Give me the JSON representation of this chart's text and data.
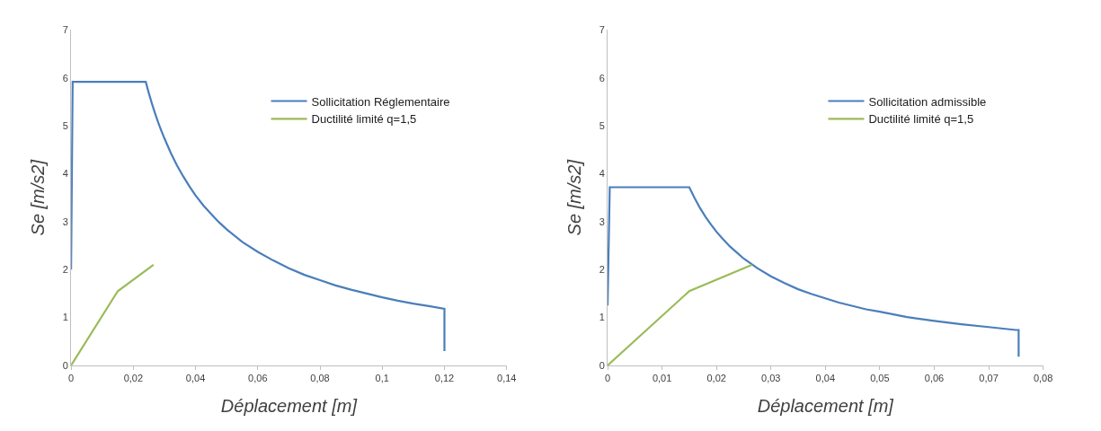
{
  "chart_data": [
    {
      "type": "line",
      "xlabel": "Déplacement [m]",
      "ylabel": "Se [m/s2]",
      "xlim": [
        0,
        0.14
      ],
      "ylim": [
        0,
        7
      ],
      "xticks": [
        0,
        {
          "value": 0.02,
          "label": "0,02"
        },
        {
          "value": 0.04,
          "label": "0,04"
        },
        {
          "value": 0.06,
          "label": "0,06"
        },
        {
          "value": 0.08,
          "label": "0,08"
        },
        {
          "value": 0.1,
          "label": "0,1"
        },
        {
          "value": 0.12,
          "label": "0,12"
        },
        {
          "value": 0.14,
          "label": "0,14"
        }
      ],
      "yticks": [
        0,
        1,
        2,
        3,
        4,
        5,
        6,
        7
      ],
      "legend": "top right",
      "marker": "none",
      "line_style": "solid",
      "series": [
        {
          "name": "Sollicitation Réglementaire",
          "color": "#4a7ebb",
          "x": [
            0,
            0.0005,
            0.024,
            0.025,
            0.026,
            0.027,
            0.028,
            0.029,
            0.03,
            0.032,
            0.034,
            0.036,
            0.038,
            0.04,
            0.0425,
            0.045,
            0.0475,
            0.05,
            0.055,
            0.06,
            0.065,
            0.07,
            0.075,
            0.08,
            0.085,
            0.09,
            0.095,
            0.1,
            0.105,
            0.11,
            0.115,
            0.12,
            0.12
          ],
          "values": [
            2.0,
            5.92,
            5.92,
            5.68,
            5.46,
            5.26,
            5.07,
            4.9,
            4.74,
            4.44,
            4.18,
            3.95,
            3.74,
            3.55,
            3.34,
            3.16,
            2.99,
            2.84,
            2.58,
            2.37,
            2.19,
            2.03,
            1.89,
            1.78,
            1.67,
            1.58,
            1.5,
            1.42,
            1.35,
            1.29,
            1.24,
            1.18,
            0.3
          ]
        },
        {
          "name": "Ductilité limité q=1,5",
          "color": "#9bbb59",
          "x": [
            0,
            0.015,
            0.0265
          ],
          "values": [
            0,
            1.55,
            2.1
          ]
        }
      ]
    },
    {
      "type": "line",
      "xlabel": "Déplacement [m]",
      "ylabel": "Se [m/s2]",
      "xlim": [
        0,
        0.08
      ],
      "ylim": [
        0,
        7
      ],
      "xticks": [
        0,
        {
          "value": 0.01,
          "label": "0,01"
        },
        {
          "value": 0.02,
          "label": "0,02"
        },
        {
          "value": 0.03,
          "label": "0,03"
        },
        {
          "value": 0.04,
          "label": "0,04"
        },
        {
          "value": 0.05,
          "label": "0,05"
        },
        {
          "value": 0.06,
          "label": "0,06"
        },
        {
          "value": 0.07,
          "label": "0,07"
        },
        {
          "value": 0.08,
          "label": "0,08"
        }
      ],
      "yticks": [
        0,
        1,
        2,
        3,
        4,
        5,
        6,
        7
      ],
      "legend": "top right",
      "marker": "none",
      "line_style": "solid",
      "series": [
        {
          "name": "Sollicitation admissible",
          "color": "#4a7ebb",
          "x": [
            0,
            0.0004,
            0.015,
            0.016,
            0.017,
            0.018,
            0.019,
            0.02,
            0.021,
            0.0225,
            0.024,
            0.025,
            0.0275,
            0.03,
            0.0325,
            0.035,
            0.0375,
            0.04,
            0.0425,
            0.045,
            0.0475,
            0.05,
            0.055,
            0.06,
            0.065,
            0.07,
            0.075,
            0.0755,
            0.0755
          ],
          "values": [
            1.25,
            3.72,
            3.72,
            3.49,
            3.28,
            3.1,
            2.94,
            2.79,
            2.66,
            2.48,
            2.33,
            2.23,
            2.03,
            1.86,
            1.72,
            1.59,
            1.49,
            1.4,
            1.31,
            1.24,
            1.17,
            1.12,
            1.01,
            0.93,
            0.86,
            0.8,
            0.74,
            0.74,
            0.18
          ]
        },
        {
          "name": "Ductilité limité q=1,5",
          "color": "#9bbb59",
          "x": [
            0,
            0.015,
            0.0265
          ],
          "values": [
            0,
            1.55,
            2.1
          ]
        }
      ]
    }
  ]
}
